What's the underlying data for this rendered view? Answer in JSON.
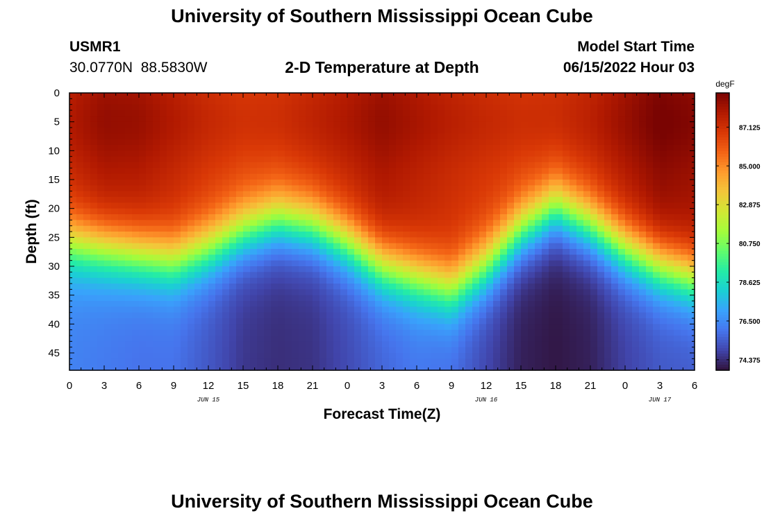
{
  "page": {
    "title": "University of Southern Mississippi Ocean Cube",
    "footer_title": "University of Southern Mississippi Ocean Cube"
  },
  "header": {
    "station_id": "USMR1",
    "station_coords": "30.0770N  88.5830W",
    "plot_title": "2-D Temperature at Depth",
    "model_start_label": "Model Start Time",
    "model_start_value": "06/15/2022 Hour 03"
  },
  "chart_data": {
    "type": "heatmap",
    "title": "2-D Temperature at Depth",
    "xlabel": "Forecast Time(Z)",
    "ylabel": "Depth (ft)",
    "x_range_hours": [
      0,
      54
    ],
    "x_ticks": [
      {
        "h": 0,
        "label": "0"
      },
      {
        "h": 3,
        "label": "3"
      },
      {
        "h": 6,
        "label": "6"
      },
      {
        "h": 9,
        "label": "9"
      },
      {
        "h": 12,
        "label": "12"
      },
      {
        "h": 15,
        "label": "15"
      },
      {
        "h": 18,
        "label": "18"
      },
      {
        "h": 21,
        "label": "21"
      },
      {
        "h": 24,
        "label": "0"
      },
      {
        "h": 27,
        "label": "3"
      },
      {
        "h": 30,
        "label": "6"
      },
      {
        "h": 33,
        "label": "9"
      },
      {
        "h": 36,
        "label": "12"
      },
      {
        "h": 39,
        "label": "15"
      },
      {
        "h": 42,
        "label": "18"
      },
      {
        "h": 45,
        "label": "21"
      },
      {
        "h": 48,
        "label": "0"
      },
      {
        "h": 51,
        "label": "3"
      },
      {
        "h": 54,
        "label": "6"
      }
    ],
    "date_labels": [
      {
        "h": 12,
        "label": "JUN 15"
      },
      {
        "h": 36,
        "label": "JUN 16"
      },
      {
        "h": 51,
        "label": "JUN 17"
      }
    ],
    "y_range_ft": [
      0,
      48
    ],
    "y_ticks": [
      0,
      5,
      10,
      15,
      20,
      25,
      30,
      35,
      40,
      45
    ],
    "colorbar": {
      "unit": "degF",
      "min": 73.8,
      "max": 89.0,
      "ticks": [
        "87.125",
        "85.000",
        "82.875",
        "80.750",
        "78.625",
        "76.500",
        "74.375"
      ],
      "tick_values": [
        87.125,
        85.0,
        82.875,
        80.75,
        78.625,
        76.5,
        74.375
      ]
    },
    "thermocline_depth_ft": [
      {
        "h": 0,
        "d": 26
      },
      {
        "h": 3,
        "d": 27
      },
      {
        "h": 6,
        "d": 28
      },
      {
        "h": 9,
        "d": 29
      },
      {
        "h": 12,
        "d": 27
      },
      {
        "h": 15,
        "d": 24
      },
      {
        "h": 18,
        "d": 22
      },
      {
        "h": 21,
        "d": 23
      },
      {
        "h": 24,
        "d": 26
      },
      {
        "h": 27,
        "d": 30
      },
      {
        "h": 30,
        "d": 32
      },
      {
        "h": 33,
        "d": 34
      },
      {
        "h": 36,
        "d": 30
      },
      {
        "h": 39,
        "d": 24
      },
      {
        "h": 42,
        "d": 20
      },
      {
        "h": 45,
        "d": 23
      },
      {
        "h": 48,
        "d": 27
      },
      {
        "h": 51,
        "d": 30
      },
      {
        "h": 54,
        "d": 32
      }
    ],
    "surface_temp_degF": [
      {
        "h": 0,
        "t": 87.4
      },
      {
        "h": 3,
        "t": 88.0
      },
      {
        "h": 6,
        "t": 87.9
      },
      {
        "h": 9,
        "t": 87.4
      },
      {
        "h": 12,
        "t": 86.9
      },
      {
        "h": 15,
        "t": 86.6
      },
      {
        "h": 18,
        "t": 86.7
      },
      {
        "h": 21,
        "t": 87.1
      },
      {
        "h": 24,
        "t": 87.5
      },
      {
        "h": 27,
        "t": 88.0
      },
      {
        "h": 30,
        "t": 87.6
      },
      {
        "h": 33,
        "t": 87.2
      },
      {
        "h": 36,
        "t": 86.9
      },
      {
        "h": 39,
        "t": 86.7
      },
      {
        "h": 42,
        "t": 86.8
      },
      {
        "h": 45,
        "t": 87.2
      },
      {
        "h": 48,
        "t": 87.9
      },
      {
        "h": 51,
        "t": 88.6
      },
      {
        "h": 54,
        "t": 88.3
      }
    ],
    "bottom_temp_degF": [
      {
        "h": 0,
        "t": 76.3
      },
      {
        "h": 3,
        "t": 76.1
      },
      {
        "h": 6,
        "t": 75.9
      },
      {
        "h": 9,
        "t": 75.9
      },
      {
        "h": 12,
        "t": 75.3
      },
      {
        "h": 15,
        "t": 74.6
      },
      {
        "h": 18,
        "t": 74.4
      },
      {
        "h": 21,
        "t": 74.5
      },
      {
        "h": 24,
        "t": 75.0
      },
      {
        "h": 27,
        "t": 75.6
      },
      {
        "h": 30,
        "t": 76.0
      },
      {
        "h": 33,
        "t": 75.8
      },
      {
        "h": 36,
        "t": 74.9
      },
      {
        "h": 39,
        "t": 74.1
      },
      {
        "h": 42,
        "t": 73.9
      },
      {
        "h": 45,
        "t": 74.1
      },
      {
        "h": 48,
        "t": 74.8
      },
      {
        "h": 51,
        "t": 75.3
      },
      {
        "h": 54,
        "t": 75.4
      }
    ],
    "colormap": [
      "#30123b",
      "#4145ab",
      "#4675ed",
      "#39a2fc",
      "#1bcfd4",
      "#24eca6",
      "#61fc6c",
      "#a4fc3b",
      "#d1e834",
      "#f3c63a",
      "#fe9b2d",
      "#f36315",
      "#d93806",
      "#b11901",
      "#7a0402"
    ]
  }
}
